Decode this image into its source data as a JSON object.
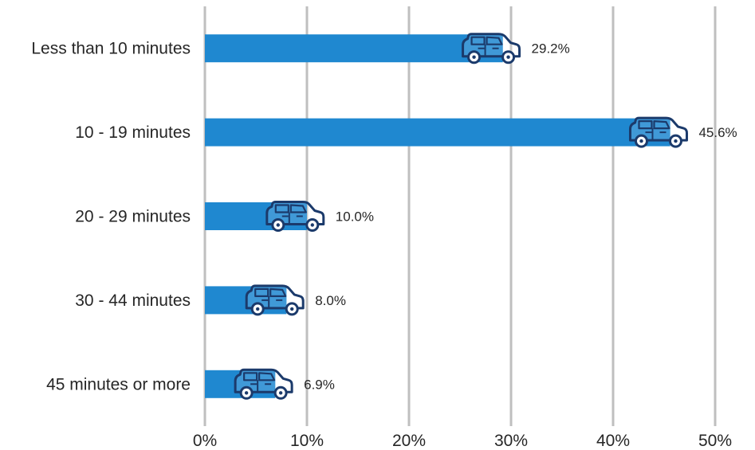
{
  "chart_data": {
    "type": "bar",
    "orientation": "horizontal",
    "title": "",
    "xlabel": "",
    "ylabel": "",
    "categories": [
      "Less than 10 minutes",
      "10 - 19 minutes",
      "20 - 29 minutes",
      "30 - 44 minutes",
      "45 minutes or more"
    ],
    "values": [
      29.2,
      45.6,
      10.0,
      8.0,
      6.9
    ],
    "value_labels": [
      "29.2%",
      "45.6%",
      "10.0%",
      "8.0%",
      "6.9%"
    ],
    "xlim": [
      0,
      50
    ],
    "x_ticks": [
      0,
      10,
      20,
      30,
      40,
      50
    ],
    "x_tick_labels": [
      "0%",
      "10%",
      "20%",
      "30%",
      "40%",
      "50%"
    ],
    "grid": "vertical",
    "legend": "none",
    "icon": "car-icon",
    "colors": {
      "bar": "#1f88d0",
      "icon": "#1b3a6b",
      "grid": "#bfbfbf",
      "text": "#262626"
    }
  }
}
